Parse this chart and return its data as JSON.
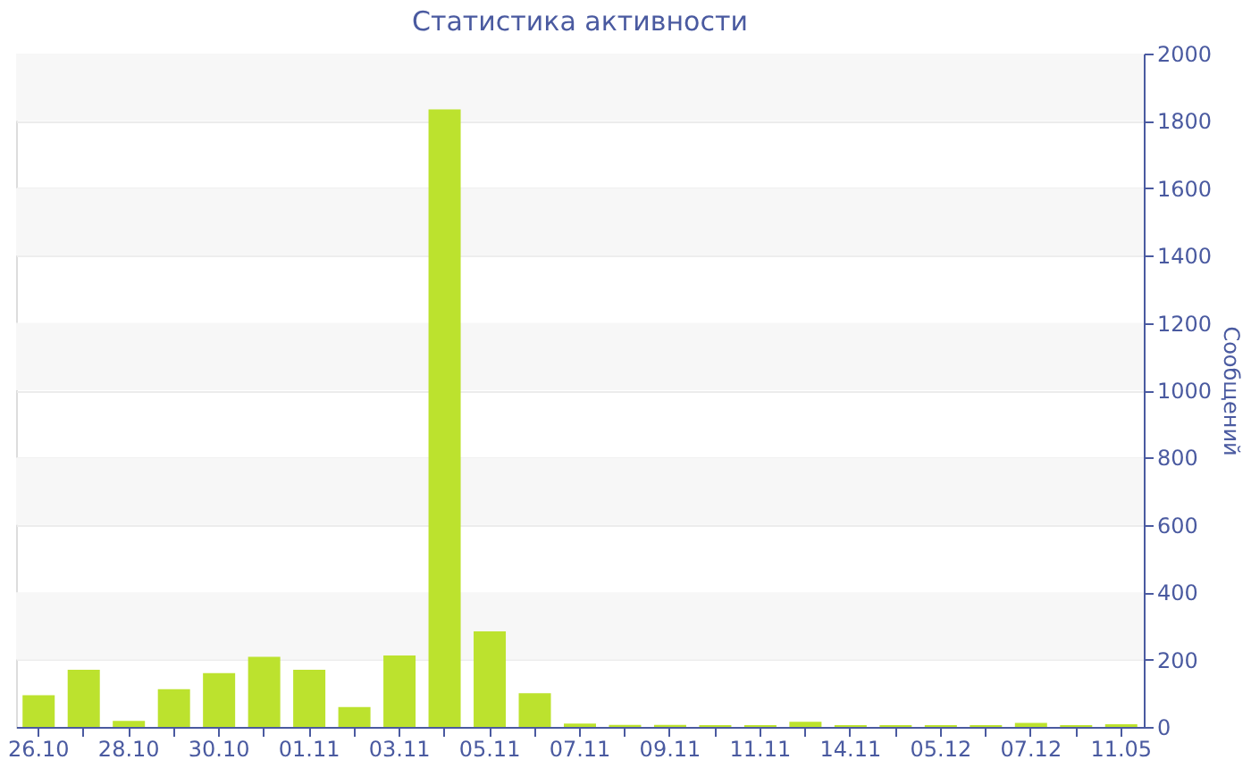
{
  "chart_data": {
    "type": "bar",
    "title": "Статистика активности",
    "ylabel": "Сообщений",
    "categories": [
      "26.10",
      null,
      "28.10",
      null,
      "30.10",
      null,
      "01.11",
      null,
      "03.11",
      null,
      "05.11",
      null,
      "07.11",
      null,
      "09.11",
      null,
      "11.11",
      null,
      "14.11",
      null,
      "05.12",
      null,
      "07.12",
      null,
      "11.05"
    ],
    "values": [
      94,
      170,
      18,
      112,
      160,
      208,
      170,
      59,
      212,
      1834,
      284,
      100,
      10,
      6,
      6,
      5,
      5,
      15,
      5,
      5,
      5,
      5,
      12,
      5,
      8
    ],
    "color": "#bce22e",
    "ylim": [
      0,
      2000
    ],
    "yticks": [
      0,
      200,
      400,
      600,
      800,
      1000,
      1200,
      1400,
      1600,
      1800,
      2000
    ],
    "grid": "y"
  }
}
